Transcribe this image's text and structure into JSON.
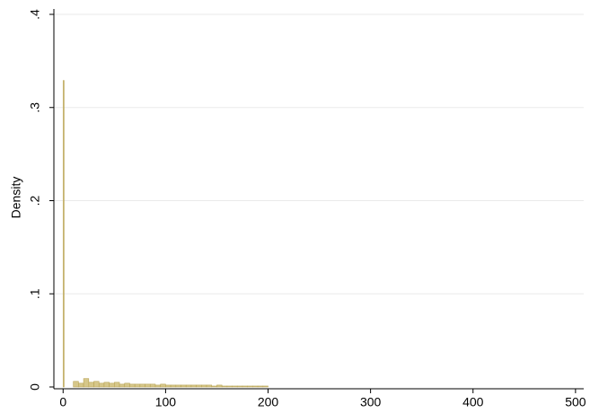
{
  "chart_data": {
    "type": "histogram",
    "y_label": "Density",
    "bins": [
      0,
      1,
      10,
      15,
      20,
      25,
      30,
      35,
      40,
      45,
      50,
      55,
      60,
      65,
      70,
      75,
      80,
      85,
      90,
      95,
      100,
      105,
      110,
      115,
      120,
      125,
      130,
      135,
      140,
      145,
      150,
      155,
      160,
      165,
      170,
      175,
      180,
      185,
      190,
      195,
      200
    ],
    "values": [
      0.329,
      0,
      0.006,
      0.004,
      0.009,
      0.005,
      0.006,
      0.004,
      0.005,
      0.004,
      0.005,
      0.003,
      0.004,
      0.003,
      0.003,
      0.003,
      0.003,
      0.003,
      0.002,
      0.003,
      0.002,
      0.002,
      0.002,
      0.002,
      0.002,
      0.002,
      0.002,
      0.002,
      0.002,
      0.001,
      0.002,
      0.001,
      0.001,
      0.001,
      0.001,
      0.001,
      0.001,
      0.001,
      0.001,
      0.001
    ],
    "color": "#d6c78a",
    "edge_color": "#b9a455",
    "xlim": [
      -9,
      508
    ],
    "ylim": [
      0,
      0.4
    ],
    "xticks": [
      0,
      100,
      200,
      300,
      400,
      500
    ],
    "yticks": [
      0,
      {
        "value": 0.1,
        "label": ".1"
      },
      {
        "value": 0.2,
        "label": ".2"
      },
      {
        "value": 0.3,
        "label": ".3"
      },
      {
        "value": 0.4,
        "label": ".4"
      }
    ],
    "grid": true
  }
}
